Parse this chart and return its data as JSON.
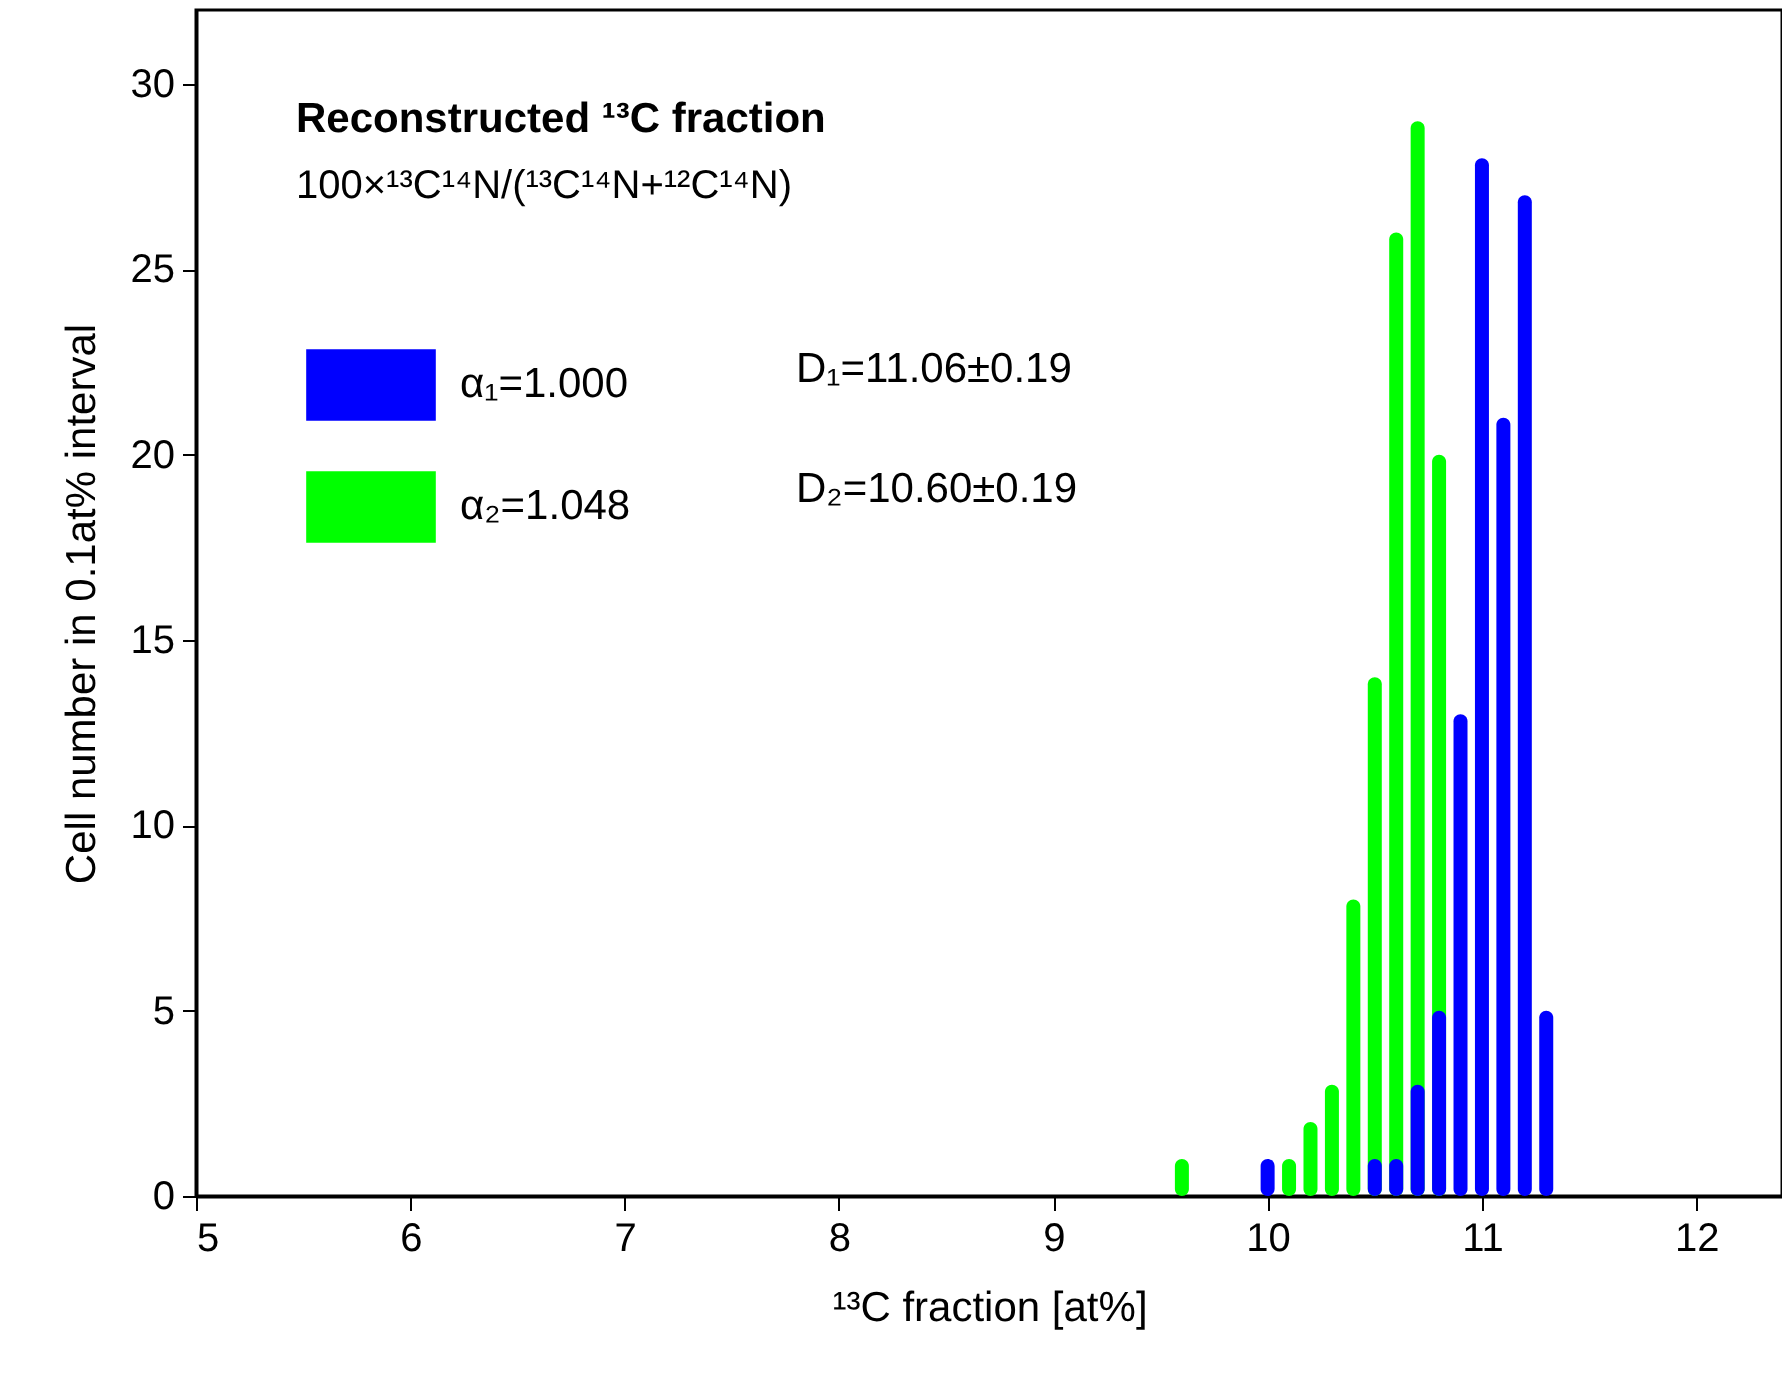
{
  "chart_data": {
    "type": "bar",
    "title": "Reconstructed ¹³C fraction",
    "subtitle": "100×¹³C¹⁴N/(¹³C¹⁴N+¹²C¹⁴N)",
    "xlabel": "¹³C fraction [at%]",
    "ylabel": "Cell number in 0.1at% interval",
    "annotations": [
      "D₁=11.06±0.19",
      "D₂=10.60±0.19"
    ],
    "xlim": [
      5,
      12.4
    ],
    "xticks": [
      5,
      6,
      7,
      8,
      9,
      10,
      11,
      12
    ],
    "ylim": [
      0,
      32
    ],
    "yticks": [
      0,
      5,
      10,
      15,
      20,
      25,
      30
    ],
    "grid": false,
    "legend": "top left",
    "series": [
      {
        "name": "α₁=1.000",
        "color": "#0000ff",
        "x": [
          10.0,
          10.5,
          10.6,
          10.7,
          10.8,
          10.9,
          11.0,
          11.1,
          11.2,
          11.3
        ],
        "values": [
          1,
          1,
          1,
          3,
          5,
          13,
          28,
          21,
          27,
          5
        ]
      },
      {
        "name": "α₂=1.048",
        "color": "#00ff00",
        "x": [
          9.6,
          10.1,
          10.2,
          10.3,
          10.4,
          10.5,
          10.6,
          10.7,
          10.8
        ],
        "values": [
          1,
          1,
          2,
          3,
          8,
          14,
          26,
          29,
          20
        ]
      }
    ]
  }
}
